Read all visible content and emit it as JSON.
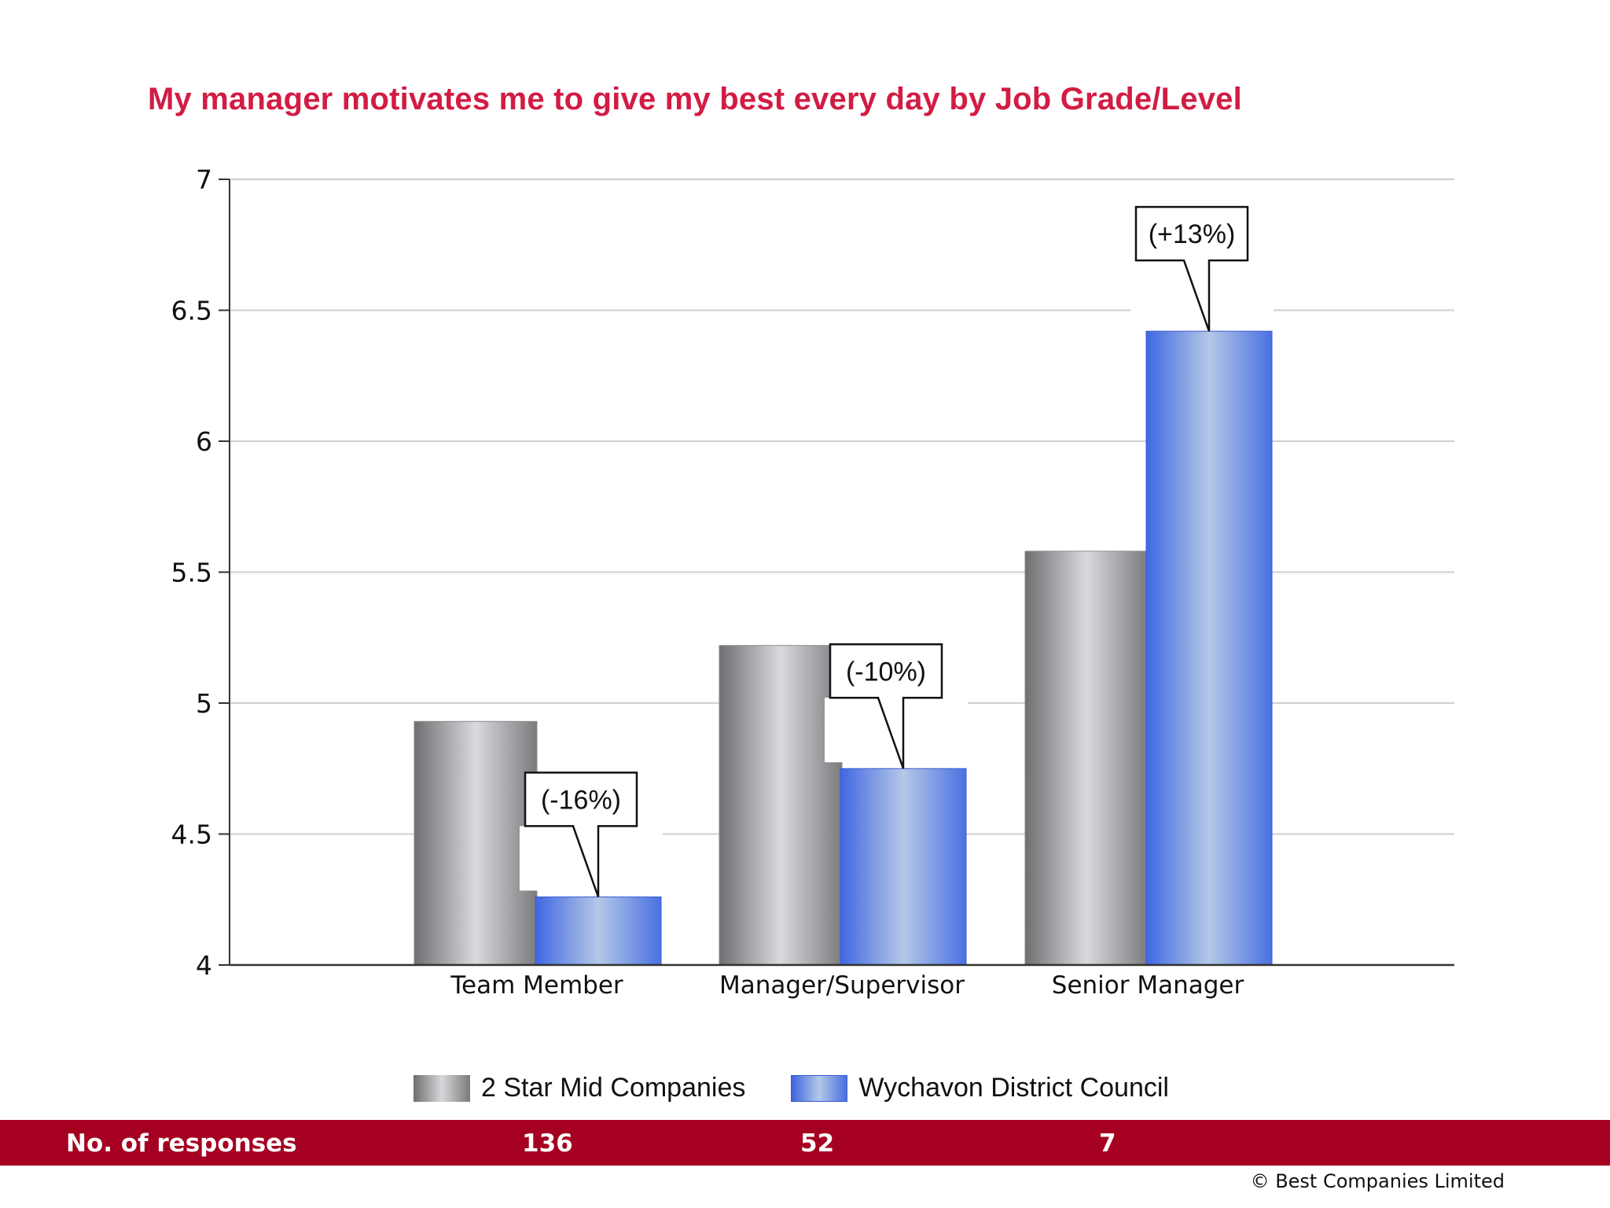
{
  "chart_data": {
    "type": "bar",
    "title": "My manager motivates me to give my best every day by Job Grade/Level",
    "categories": [
      "Team Member",
      "Manager/Supervisor",
      "Senior Manager"
    ],
    "series": [
      {
        "name": "2 Star Mid Companies",
        "values": [
          4.93,
          5.22,
          5.58
        ],
        "color": "#9a9a9e"
      },
      {
        "name": "Wychavon District Council",
        "values": [
          4.26,
          4.75,
          6.42
        ],
        "color": "#4a6ee0"
      }
    ],
    "callouts": [
      "(-16%)",
      "(-10%)",
      "(+13%)"
    ],
    "ylim": [
      4,
      7
    ],
    "yticks": [
      "4",
      "4.5",
      "5",
      "5.5",
      "6",
      "6.5",
      "7"
    ],
    "ytick_values": [
      4,
      4.5,
      5,
      5.5,
      6,
      6.5,
      7
    ],
    "grid": true,
    "legend_position": "bottom"
  },
  "responses": {
    "label": "No. of responses",
    "values": [
      "136",
      "52",
      "7"
    ]
  },
  "copyright": "© Best Companies Limited"
}
